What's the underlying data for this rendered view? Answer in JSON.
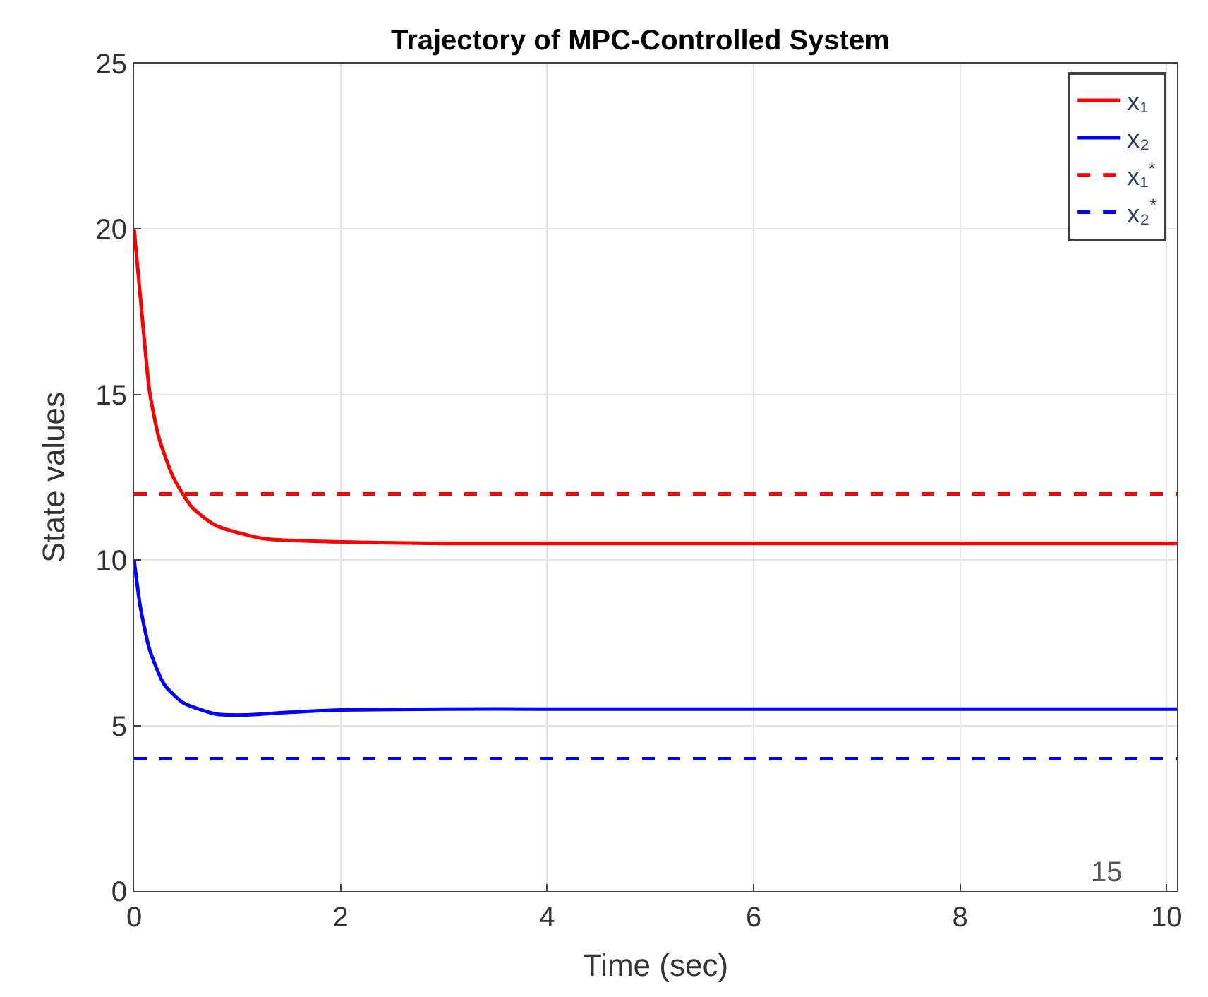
{
  "chart_data": {
    "type": "line",
    "title": "Trajectory of MPC-Controlled System",
    "xlabel": "Time (sec)",
    "ylabel": "State values",
    "xlim": [
      0,
      10.1
    ],
    "xticks": [
      0,
      2,
      4,
      6,
      8,
      10
    ],
    "ylim": [
      0,
      25
    ],
    "yticks": [
      0,
      5,
      10,
      15,
      20,
      25
    ],
    "grid": true,
    "legend": "top right",
    "series": [
      {
        "name": "x₁",
        "color": "#ff0000",
        "line_style": "solid",
        "x": [
          0,
          0.08,
          0.15,
          0.24,
          0.38,
          0.56,
          0.79,
          1.25,
          2,
          3,
          4,
          6,
          8,
          10.1
        ],
        "values": [
          20,
          17.3,
          15.1,
          13.7,
          12.5,
          11.6,
          11.05,
          10.65,
          10.55,
          10.5,
          10.5,
          10.5,
          10.5,
          10.5
        ]
      },
      {
        "name": "x₂",
        "color": "#0000ff",
        "line_style": "solid",
        "x": [
          0,
          0.06,
          0.15,
          0.29,
          0.47,
          0.79,
          1.06,
          1.5,
          2,
          3,
          4,
          6,
          8,
          10.1
        ],
        "values": [
          10,
          8.6,
          7.3,
          6.25,
          5.7,
          5.35,
          5.32,
          5.4,
          5.47,
          5.5,
          5.5,
          5.5,
          5.5,
          5.5
        ]
      },
      {
        "name": "x₁$^{*}$",
        "color": "#ff0000",
        "line_style": "dashed",
        "x": [
          0,
          10.1
        ],
        "values": [
          12,
          12
        ]
      },
      {
        "name": "x₂$^{*}$",
        "color": "#0000ff",
        "line_style": "dashed",
        "x": [
          0,
          10.1
        ],
        "values": [
          4,
          4
        ]
      }
    ],
    "annotations": [
      "15"
    ]
  }
}
